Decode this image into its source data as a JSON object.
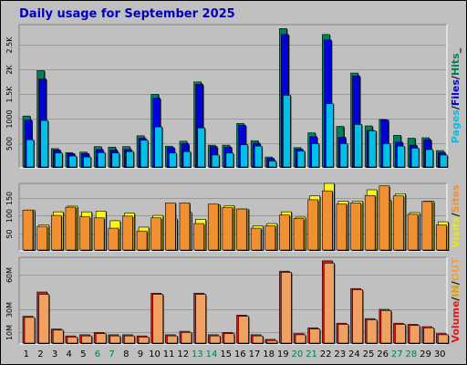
{
  "title": "Daily usage for September 2025",
  "chart_data": [
    {
      "type": "bar",
      "panel": "top",
      "categories": [
        "1",
        "2",
        "3",
        "4",
        "5",
        "6",
        "7",
        "8",
        "9",
        "10",
        "11",
        "12",
        "13",
        "14",
        "15",
        "16",
        "17",
        "18",
        "19",
        "20",
        "21",
        "22",
        "23",
        "24",
        "25",
        "26",
        "27",
        "28",
        "29",
        "30"
      ],
      "ylim": [
        0,
        2900
      ],
      "y_ticks": [
        "2.5K",
        "2K",
        "1.5K",
        "1000",
        "500"
      ],
      "y_tick_values": [
        2500,
        2000,
        1500,
        1000,
        500
      ],
      "legend": [
        {
          "label": "Pages",
          "color": "#00c0e8"
        },
        {
          "label": "/",
          "color": "#000000"
        },
        {
          "label": "Files",
          "color": "#0000d8"
        },
        {
          "label": "/",
          "color": "#000000"
        },
        {
          "label": "Hits",
          "color": "#00805a"
        },
        {
          "label": "_",
          "color": "#000000"
        }
      ],
      "series": [
        {
          "name": "Hits",
          "color": "#00805a",
          "values": [
            1050,
            1970,
            390,
            310,
            320,
            430,
            420,
            430,
            650,
            1490,
            440,
            540,
            1740,
            460,
            460,
            900,
            550,
            220,
            2820,
            410,
            710,
            2700,
            840,
            1920,
            850,
            980,
            660,
            600,
            610,
            350
          ]
        },
        {
          "name": "Files",
          "color": "#0000d8",
          "values": [
            970,
            1800,
            360,
            290,
            290,
            370,
            360,
            370,
            600,
            1410,
            410,
            490,
            1690,
            430,
            420,
            860,
            500,
            190,
            2700,
            380,
            630,
            2590,
            620,
            1860,
            760,
            970,
            520,
            460,
            570,
            310
          ]
        },
        {
          "name": "Pages",
          "color": "#00c0e8",
          "values": [
            570,
            960,
            300,
            240,
            220,
            310,
            300,
            330,
            560,
            830,
            300,
            330,
            810,
            260,
            300,
            470,
            440,
            140,
            1470,
            340,
            490,
            1300,
            490,
            880,
            750,
            490,
            440,
            400,
            370,
            260
          ]
        }
      ]
    },
    {
      "type": "bar",
      "panel": "middle",
      "categories": [
        "1",
        "2",
        "3",
        "4",
        "5",
        "6",
        "7",
        "8",
        "9",
        "10",
        "11",
        "12",
        "13",
        "14",
        "15",
        "16",
        "17",
        "18",
        "19",
        "20",
        "21",
        "22",
        "23",
        "24",
        "25",
        "26",
        "27",
        "28",
        "29",
        "30"
      ],
      "ylim": [
        0,
        190
      ],
      "y_ticks": [
        "150",
        "100",
        "50"
      ],
      "y_tick_values": [
        150,
        100,
        50
      ],
      "legend": [
        {
          "label": "Visits",
          "color": "#e8e818"
        },
        {
          "label": "/",
          "color": "#000000"
        },
        {
          "label": "Sites",
          "color": "#f09030"
        }
      ],
      "series": [
        {
          "name": "Visits",
          "color": "#f8f818",
          "values": [
            115,
            73,
            110,
            126,
            110,
            112,
            85,
            106,
            67,
            100,
            90,
            109,
            89,
            130,
            127,
            118,
            71,
            77,
            110,
            95,
            155,
            190,
            140,
            140,
            172,
            143,
            161,
            108,
            140,
            82
          ]
        },
        {
          "name": "Sites",
          "color": "#f09030",
          "values": [
            115,
            69,
            100,
            123,
            96,
            93,
            64,
            98,
            56,
            93,
            135,
            135,
            77,
            132,
            122,
            118,
            64,
            71,
            101,
            91,
            144,
            169,
            132,
            135,
            156,
            183,
            155,
            103,
            139,
            73
          ]
        }
      ]
    },
    {
      "type": "bar",
      "panel": "bottom",
      "categories": [
        "1",
        "2",
        "3",
        "4",
        "5",
        "6",
        "7",
        "8",
        "9",
        "10",
        "11",
        "12",
        "13",
        "14",
        "15",
        "16",
        "17",
        "18",
        "19",
        "20",
        "21",
        "22",
        "23",
        "24",
        "25",
        "26",
        "27",
        "28",
        "29",
        "30"
      ],
      "ylim": [
        0,
        75
      ],
      "y_ticks": [
        "60M",
        "30M",
        "10M"
      ],
      "y_tick_values": [
        60,
        30,
        10
      ],
      "legend": [
        {
          "label": "Volume",
          "color": "#e01818"
        },
        {
          "label": "/",
          "color": "#000000"
        },
        {
          "label": "IN",
          "color": "#e0a000"
        },
        {
          "label": "/",
          "color": "#000000"
        },
        {
          "label": "OUT",
          "color": "#f0a040"
        }
      ],
      "series": [
        {
          "name": "Volume",
          "color": "#d81818",
          "values": [
            24,
            45,
            13,
            7,
            8,
            10,
            8,
            8,
            7,
            44,
            8,
            11,
            44,
            8,
            10,
            25,
            8,
            4,
            63,
            9,
            14,
            72,
            18,
            48,
            22,
            30,
            18,
            17,
            15,
            9
          ]
        },
        {
          "name": "OUT",
          "color": "#f0a060",
          "values": [
            23,
            43,
            12,
            6,
            7,
            9,
            7,
            7,
            6,
            43,
            7,
            10,
            43,
            7,
            9,
            24,
            7,
            3,
            62,
            8,
            13,
            70,
            17,
            47,
            21,
            29,
            17,
            16,
            14,
            8
          ]
        }
      ]
    }
  ],
  "weekend_days": [
    "6",
    "7",
    "13",
    "14",
    "20",
    "21",
    "27",
    "28"
  ],
  "colors": {
    "weekday_label": "#000000",
    "weekend_label": "#00804a",
    "panel_bg": "#c0c0c0",
    "title": "#0000c0"
  }
}
